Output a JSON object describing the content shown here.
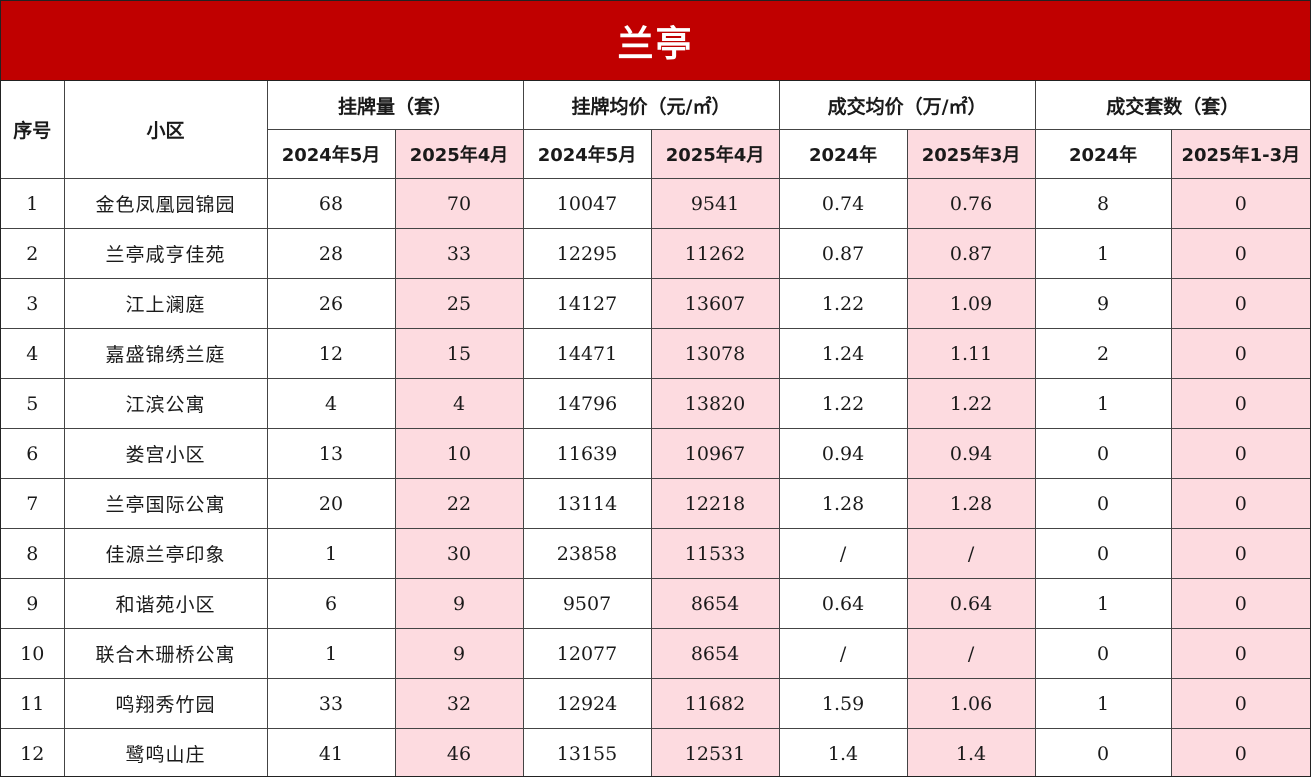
{
  "title": "兰亭",
  "header": {
    "col_index": "序号",
    "col_name": "小区",
    "groups": [
      {
        "label": "挂牌量（套）",
        "sub": [
          "2024年5月",
          "2025年4月"
        ]
      },
      {
        "label": "挂牌均价（元/㎡）",
        "sub": [
          "2024年5月",
          "2025年4月"
        ]
      },
      {
        "label": "成交均价（万/㎡）",
        "sub": [
          "2024年",
          "2025年3月"
        ]
      },
      {
        "label": "成交套数（套）",
        "sub": [
          "2024年",
          "2025年1-3月"
        ]
      }
    ]
  },
  "rows": [
    {
      "idx": "1",
      "name": "金色凤凰园锦园",
      "v": [
        "68",
        "70",
        "10047",
        "9541",
        "0.74",
        "0.76",
        "8",
        "0"
      ]
    },
    {
      "idx": "2",
      "name": "兰亭咸亨佳苑",
      "v": [
        "28",
        "33",
        "12295",
        "11262",
        "0.87",
        "0.87",
        "1",
        "0"
      ]
    },
    {
      "idx": "3",
      "name": "江上澜庭",
      "v": [
        "26",
        "25",
        "14127",
        "13607",
        "1.22",
        "1.09",
        "9",
        "0"
      ]
    },
    {
      "idx": "4",
      "name": "嘉盛锦绣兰庭",
      "v": [
        "12",
        "15",
        "14471",
        "13078",
        "1.24",
        "1.11",
        "2",
        "0"
      ]
    },
    {
      "idx": "5",
      "name": "江滨公寓",
      "v": [
        "4",
        "4",
        "14796",
        "13820",
        "1.22",
        "1.22",
        "1",
        "0"
      ]
    },
    {
      "idx": "6",
      "name": "娄宫小区",
      "v": [
        "13",
        "10",
        "11639",
        "10967",
        "0.94",
        "0.94",
        "0",
        "0"
      ]
    },
    {
      "idx": "7",
      "name": "兰亭国际公寓",
      "v": [
        "20",
        "22",
        "13114",
        "12218",
        "1.28",
        "1.28",
        "0",
        "0"
      ]
    },
    {
      "idx": "8",
      "name": "佳源兰亭印象",
      "v": [
        "1",
        "30",
        "23858",
        "11533",
        "/",
        "/",
        "0",
        "0"
      ]
    },
    {
      "idx": "9",
      "name": "和谐苑小区",
      "v": [
        "6",
        "9",
        "9507",
        "8654",
        "0.64",
        "0.64",
        "1",
        "0"
      ]
    },
    {
      "idx": "10",
      "name": "联合木珊桥公寓",
      "v": [
        "1",
        "9",
        "12077",
        "8654",
        "/",
        "/",
        "0",
        "0"
      ]
    },
    {
      "idx": "11",
      "name": "鸣翔秀竹园",
      "v": [
        "33",
        "32",
        "12924",
        "11682",
        "1.59",
        "1.06",
        "1",
        "0"
      ]
    },
    {
      "idx": "12",
      "name": "鹭鸣山庄",
      "v": [
        "41",
        "46",
        "13155",
        "12531",
        "1.4",
        "1.4",
        "0",
        "0"
      ]
    }
  ],
  "colors": {
    "banner": "#c00000",
    "highlight": "#fddbe0"
  }
}
